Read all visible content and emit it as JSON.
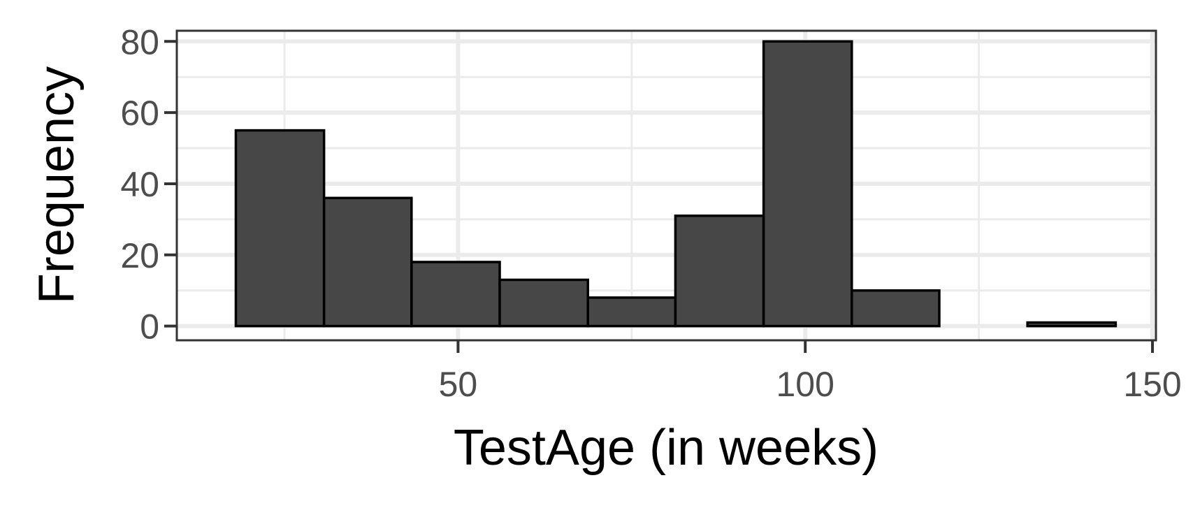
{
  "chart_data": {
    "type": "bar",
    "title": "",
    "xlabel": "TestAge (in weeks)",
    "ylabel": "Frequency",
    "xlim": [
      9.5,
      150.5
    ],
    "ylim": [
      -4,
      83
    ],
    "x_ticks": [
      50,
      100,
      150
    ],
    "y_ticks": [
      0,
      20,
      40,
      60,
      80
    ],
    "grid": true,
    "legend": "none",
    "bar_color": "#474747",
    "bar_edge_color": "#000000",
    "bins": [
      {
        "x0": 18.0,
        "x1": 30.7,
        "count": 55
      },
      {
        "x0": 30.7,
        "x1": 43.3,
        "count": 36
      },
      {
        "x0": 43.3,
        "x1": 56.0,
        "count": 18
      },
      {
        "x0": 56.0,
        "x1": 68.7,
        "count": 13
      },
      {
        "x0": 68.7,
        "x1": 81.3,
        "count": 8
      },
      {
        "x0": 81.3,
        "x1": 94.0,
        "count": 31
      },
      {
        "x0": 94.0,
        "x1": 106.7,
        "count": 80
      },
      {
        "x0": 106.7,
        "x1": 119.3,
        "count": 10
      },
      {
        "x0": 119.3,
        "x1": 132.0,
        "count": 0
      },
      {
        "x0": 132.0,
        "x1": 144.7,
        "count": 1
      }
    ]
  }
}
